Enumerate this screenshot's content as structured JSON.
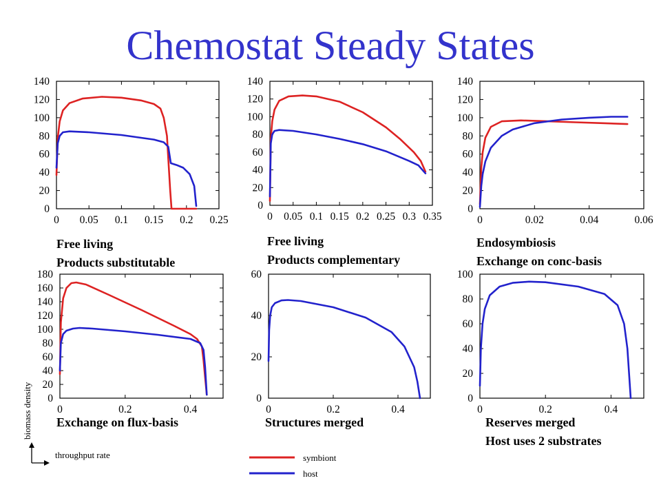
{
  "title": "Chemostat Steady States",
  "axis_hint": {
    "y_label": "biomass density",
    "x_label": "throughput rate"
  },
  "legend": [
    {
      "name": "symbiont",
      "color": "#dd2222"
    },
    {
      "name": "host",
      "color": "#2222cc"
    }
  ],
  "colors": {
    "title": "#3333cc",
    "symbiont": "#dd2222",
    "host": "#2222cc"
  },
  "chart_data": [
    {
      "type": "line",
      "panel": "top-left",
      "caption": [
        "Free living",
        "Products substitutable"
      ],
      "xlim": [
        0,
        0.25
      ],
      "ylim": [
        0,
        140
      ],
      "x_ticks": [
        "0",
        "0.05",
        "0.1",
        "0.15",
        "0.2",
        "0.25"
      ],
      "y_ticks": [
        "0",
        "20",
        "40",
        "60",
        "80",
        "100",
        "120",
        "140"
      ],
      "series": [
        {
          "name": "symbiont",
          "x": [
            0,
            0.002,
            0.005,
            0.01,
            0.02,
            0.04,
            0.07,
            0.1,
            0.13,
            0.15,
            0.16,
            0.165,
            0.17,
            0.172,
            0.175,
            0.177,
            0.2,
            0.215
          ],
          "y": [
            37,
            78,
            96,
            108,
            116,
            121,
            123,
            122,
            119,
            115,
            110,
            100,
            80,
            55,
            20,
            0,
            0,
            0
          ]
        },
        {
          "name": "host",
          "x": [
            0,
            0.002,
            0.005,
            0.01,
            0.02,
            0.05,
            0.1,
            0.15,
            0.165,
            0.172,
            0.176,
            0.185,
            0.195,
            0.205,
            0.212,
            0.215
          ],
          "y": [
            45,
            72,
            80,
            84,
            85,
            84,
            81,
            76,
            73,
            68,
            50,
            48,
            45,
            38,
            25,
            3
          ]
        }
      ]
    },
    {
      "type": "line",
      "panel": "top-middle",
      "caption": [
        "Free living",
        "Products complementary"
      ],
      "xlim": [
        0,
        0.35
      ],
      "ylim": [
        0,
        140
      ],
      "x_ticks": [
        "0",
        "0.05",
        "0.1",
        "0.15",
        "0.2",
        "0.25",
        "0.3",
        "0.35"
      ],
      "y_ticks": [
        "0",
        "20",
        "40",
        "60",
        "80",
        "100",
        "120",
        "140"
      ],
      "series": [
        {
          "name": "symbiont",
          "x": [
            0,
            0.002,
            0.005,
            0.01,
            0.02,
            0.04,
            0.07,
            0.1,
            0.15,
            0.2,
            0.25,
            0.28,
            0.31,
            0.325,
            0.335
          ],
          "y": [
            5,
            75,
            95,
            108,
            118,
            123,
            124,
            123,
            117,
            105,
            88,
            75,
            60,
            50,
            38
          ]
        },
        {
          "name": "host",
          "x": [
            0,
            0.002,
            0.005,
            0.01,
            0.02,
            0.05,
            0.1,
            0.15,
            0.2,
            0.25,
            0.3,
            0.32,
            0.335
          ],
          "y": [
            10,
            70,
            80,
            84,
            85,
            84,
            80,
            75,
            69,
            61,
            50,
            45,
            36
          ]
        }
      ]
    },
    {
      "type": "line",
      "panel": "top-right",
      "caption": [
        "Endosymbiosis",
        "Exchange on conc-basis"
      ],
      "xlim": [
        0,
        0.06
      ],
      "ylim": [
        0,
        140
      ],
      "x_ticks": [
        "0",
        "0.02",
        "0.04",
        "0.06"
      ],
      "y_ticks": [
        "0",
        "20",
        "40",
        "60",
        "80",
        "100",
        "120",
        "140"
      ],
      "series": [
        {
          "name": "symbiont",
          "x": [
            0,
            0.0005,
            0.001,
            0.002,
            0.004,
            0.008,
            0.015,
            0.025,
            0.035,
            0.045,
            0.054
          ],
          "y": [
            5,
            45,
            62,
            78,
            90,
            96,
            97,
            96,
            95,
            94,
            93
          ]
        },
        {
          "name": "host",
          "x": [
            0,
            0.0005,
            0.001,
            0.002,
            0.004,
            0.008,
            0.012,
            0.02,
            0.03,
            0.04,
            0.048,
            0.054
          ],
          "y": [
            2,
            25,
            38,
            52,
            67,
            80,
            87,
            94,
            98,
            100,
            101,
            101
          ]
        }
      ]
    },
    {
      "type": "line",
      "panel": "bottom-left",
      "caption": [
        "Exchange on flux-basis"
      ],
      "xlim": [
        0,
        0.5
      ],
      "ylim": [
        0,
        180
      ],
      "x_ticks": [
        "0",
        "0.2",
        "0.4"
      ],
      "y_ticks": [
        "0",
        "20",
        "40",
        "60",
        "80",
        "100",
        "120",
        "140",
        "160",
        "180"
      ],
      "series": [
        {
          "name": "symbiont",
          "x": [
            0,
            0.003,
            0.01,
            0.02,
            0.035,
            0.05,
            0.08,
            0.15,
            0.25,
            0.35,
            0.4,
            0.42,
            0.435,
            0.44,
            0.445,
            0.45
          ],
          "y": [
            35,
            110,
            145,
            160,
            167,
            168,
            165,
            150,
            128,
            105,
            93,
            86,
            75,
            55,
            30,
            5
          ]
        },
        {
          "name": "host",
          "x": [
            0,
            0.003,
            0.01,
            0.02,
            0.04,
            0.06,
            0.1,
            0.2,
            0.3,
            0.4,
            0.43,
            0.44,
            0.445,
            0.45
          ],
          "y": [
            40,
            80,
            93,
            98,
            101,
            102,
            101,
            97,
            92,
            86,
            80,
            70,
            45,
            5
          ]
        }
      ]
    },
    {
      "type": "line",
      "panel": "bottom-middle",
      "caption": [
        "Structures merged"
      ],
      "xlim": [
        0,
        0.5
      ],
      "ylim": [
        0,
        60
      ],
      "x_ticks": [
        "0",
        "0.2",
        "0.4"
      ],
      "y_ticks": [
        "0",
        "20",
        "40",
        "60"
      ],
      "series": [
        {
          "name": "host",
          "x": [
            0,
            0.002,
            0.005,
            0.01,
            0.02,
            0.04,
            0.06,
            0.1,
            0.2,
            0.3,
            0.38,
            0.42,
            0.45,
            0.46,
            0.468
          ],
          "y": [
            18,
            33,
            40,
            44,
            46,
            47.3,
            47.5,
            47,
            44,
            39,
            32,
            25,
            15,
            8,
            0
          ]
        }
      ]
    },
    {
      "type": "line",
      "panel": "bottom-right",
      "caption": [
        "Reserves merged",
        "Host uses 2 substrates"
      ],
      "xlim": [
        0,
        0.5
      ],
      "ylim": [
        0,
        100
      ],
      "x_ticks": [
        "0",
        "0.2",
        "0.4"
      ],
      "y_ticks": [
        "0",
        "20",
        "40",
        "60",
        "80",
        "100"
      ],
      "series": [
        {
          "name": "host",
          "x": [
            0,
            0.003,
            0.008,
            0.015,
            0.03,
            0.06,
            0.1,
            0.15,
            0.2,
            0.3,
            0.38,
            0.42,
            0.44,
            0.45,
            0.455,
            0.46
          ],
          "y": [
            10,
            40,
            60,
            72,
            83,
            90,
            93,
            94,
            93.5,
            90,
            84,
            75,
            60,
            40,
            20,
            0
          ]
        }
      ]
    }
  ]
}
